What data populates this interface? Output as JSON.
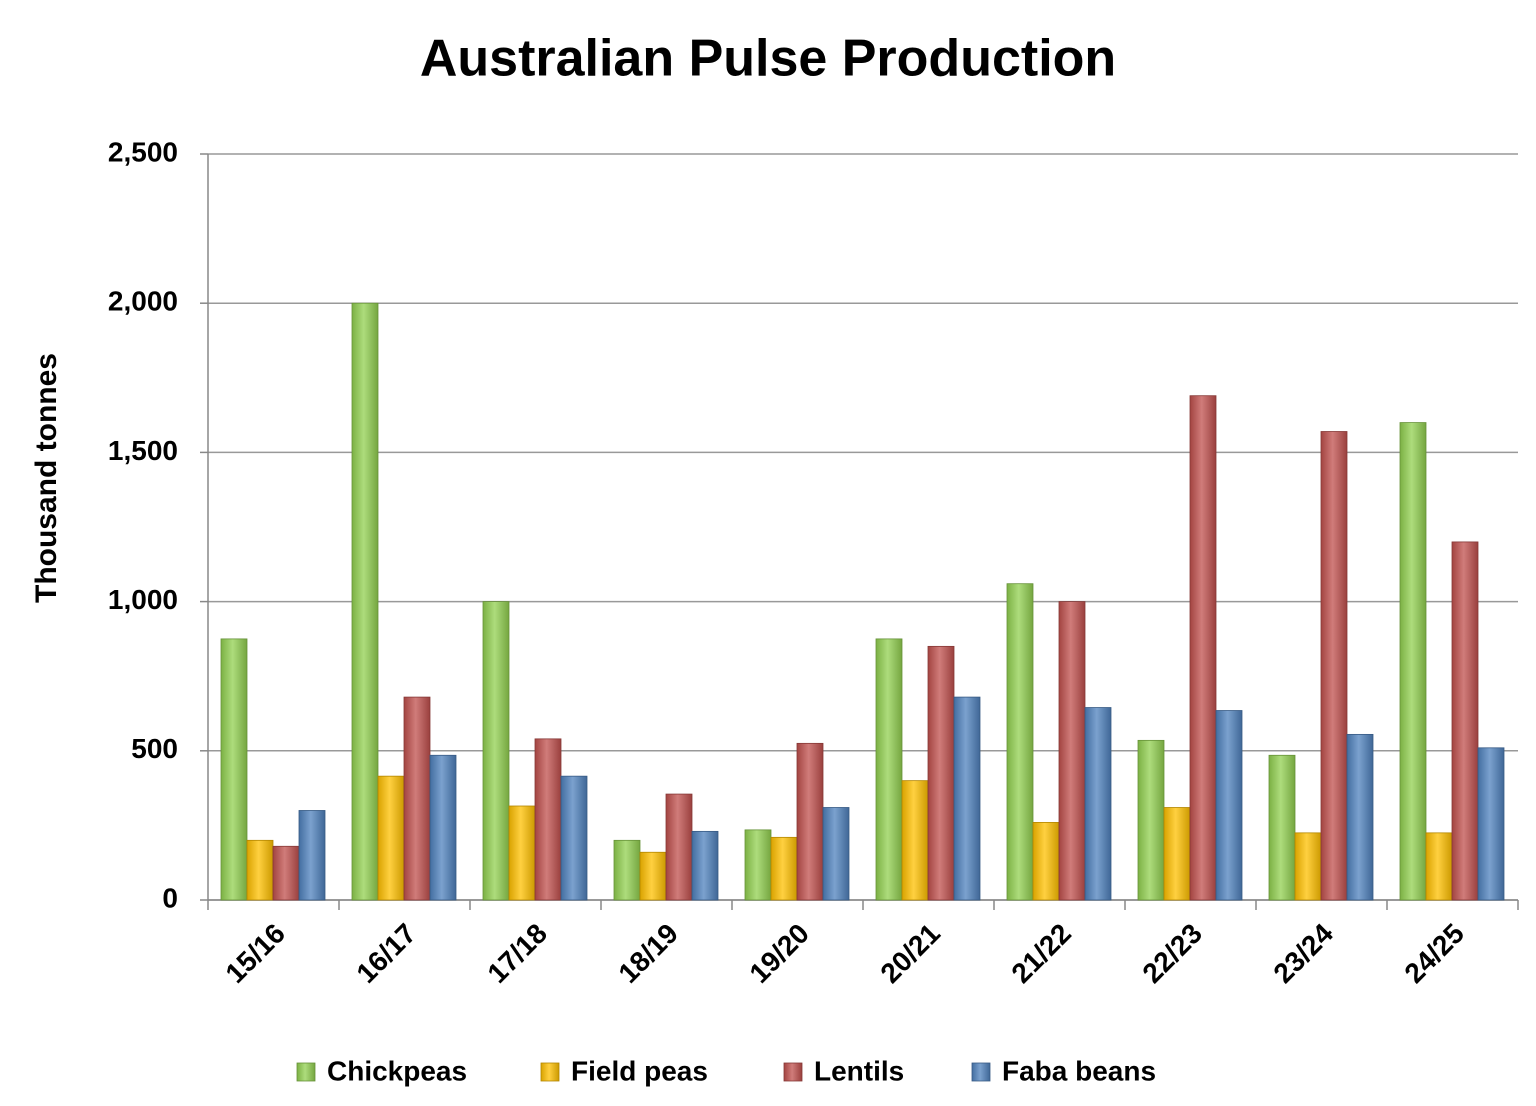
{
  "chart_data": {
    "type": "bar",
    "title": "Australian Pulse Production",
    "y_label": "Thousand tonnes",
    "categories": [
      "15/16",
      "16/17",
      "17/18",
      "18/19",
      "19/20",
      "20/21",
      "21/22",
      "22/23",
      "23/24",
      "24/25"
    ],
    "series": [
      {
        "name": "Chickpeas",
        "color": "#92d050",
        "values": [
          875,
          2000,
          1000,
          200,
          235,
          875,
          1060,
          535,
          485,
          1600
        ]
      },
      {
        "name": "Field peas",
        "color": "#ffc000",
        "values": [
          200,
          415,
          315,
          160,
          210,
          400,
          260,
          310,
          225,
          225
        ]
      },
      {
        "name": "Lentils",
        "color": "#c0504d",
        "values": [
          180,
          680,
          540,
          355,
          525,
          850,
          1000,
          1690,
          1570,
          1200
        ]
      },
      {
        "name": "Faba beans",
        "color": "#4f81bd",
        "values": [
          300,
          485,
          415,
          230,
          310,
          680,
          645,
          635,
          555,
          510
        ]
      }
    ],
    "ylim": [
      0,
      2500
    ],
    "yticks": [
      0,
      500,
      {
        "value": 1000,
        "label": "1,000"
      },
      {
        "value": 1500,
        "label": "1,500"
      },
      {
        "value": 2000,
        "label": "2,000"
      },
      {
        "value": 2500,
        "label": "2,500"
      }
    ],
    "grid": true
  }
}
